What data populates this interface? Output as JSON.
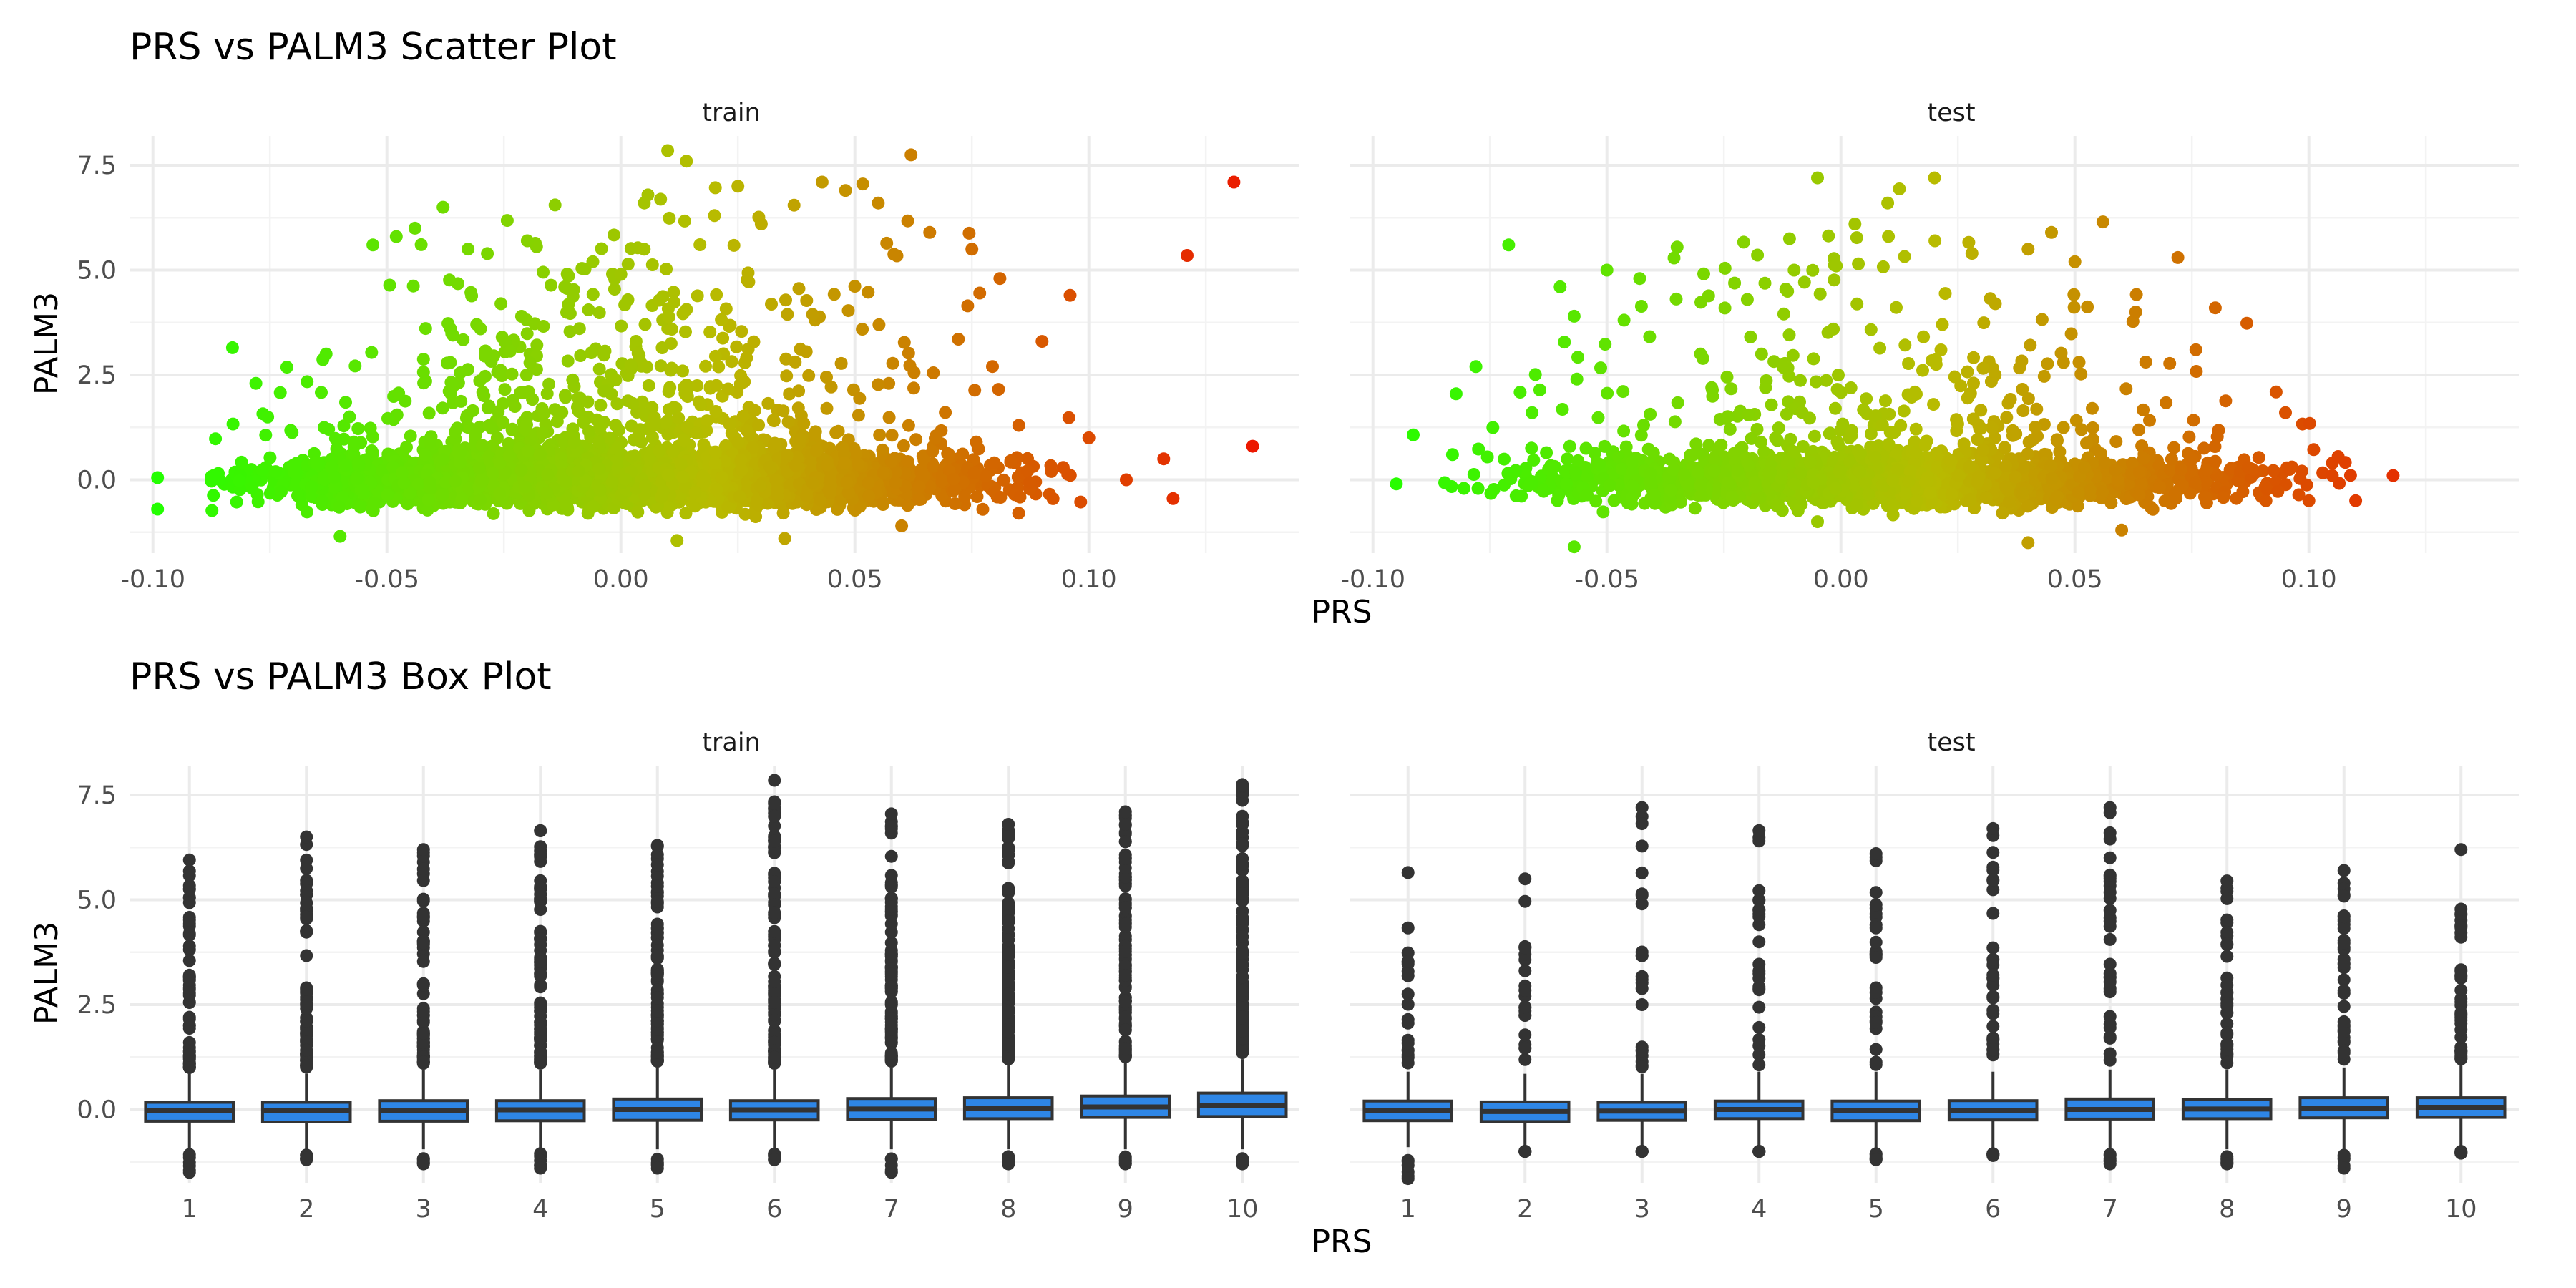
{
  "chart_data": [
    {
      "type": "scatter",
      "title": "PRS vs PALM3 Scatter Plot",
      "xlabel": "PRS",
      "ylabel": "PALM3",
      "facets": [
        "train",
        "test"
      ],
      "xlim": [
        -0.105,
        0.145
      ],
      "ylim": [
        -1.75,
        8.2
      ],
      "xticks": [
        -0.1,
        -0.05,
        0.0,
        0.05,
        0.1
      ],
      "xtick_labels": [
        "-0.10",
        "-0.05",
        "0.00",
        "0.05",
        "0.10"
      ],
      "yticks": [
        0.0,
        2.5,
        5.0,
        7.5
      ],
      "ytick_labels": [
        "0.0",
        "2.5",
        "5.0",
        "7.5"
      ],
      "grid": true,
      "legend": "none",
      "color_gradient": {
        "low": "#22ff00",
        "mid": "#b8bb00",
        "high": "#ee1100",
        "mapped_to": "PRS"
      },
      "series": [
        {
          "facet": "train",
          "description_points": [
            [
              -0.099,
              0.05
            ],
            [
              -0.099,
              -0.7
            ],
            [
              -0.083,
              3.15
            ],
            [
              -0.078,
              2.3
            ],
            [
              -0.07,
              0.35
            ],
            [
              -0.063,
              3.0
            ],
            [
              -0.058,
              1.5
            ],
            [
              -0.053,
              5.6
            ],
            [
              -0.048,
              5.8
            ],
            [
              -0.044,
              6.0
            ],
            [
              -0.038,
              6.5
            ],
            [
              -0.03,
              3.6
            ],
            [
              -0.02,
              5.7
            ],
            [
              -0.012,
              4.6
            ],
            [
              -0.006,
              5.2
            ],
            [
              0.0,
              4.9
            ],
            [
              0.005,
              6.6
            ],
            [
              0.01,
              7.85
            ],
            [
              0.014,
              7.6
            ],
            [
              0.02,
              6.3
            ],
            [
              0.025,
              7.0
            ],
            [
              0.03,
              6.1
            ],
            [
              0.037,
              6.55
            ],
            [
              0.043,
              7.1
            ],
            [
              0.048,
              6.9
            ],
            [
              0.055,
              6.6
            ],
            [
              0.062,
              7.75
            ],
            [
              0.066,
              5.9
            ],
            [
              0.075,
              5.5
            ],
            [
              0.081,
              4.8
            ],
            [
              0.09,
              3.3
            ],
            [
              0.096,
              4.4
            ],
            [
              0.1,
              1.0
            ],
            [
              0.108,
              0.0
            ],
            [
              0.116,
              0.5
            ],
            [
              0.118,
              -0.45
            ],
            [
              0.121,
              5.35
            ],
            [
              0.131,
              7.1
            ],
            [
              0.135,
              0.8
            ],
            [
              -0.06,
              -1.35
            ],
            [
              0.012,
              -1.45
            ],
            [
              0.035,
              -1.4
            ],
            [
              0.06,
              -1.1
            ],
            [
              0.085,
              -0.8
            ]
          ]
        },
        {
          "facet": "test",
          "description_points": [
            [
              -0.095,
              -0.1
            ],
            [
              -0.083,
              0.6
            ],
            [
              -0.078,
              2.7
            ],
            [
              -0.071,
              5.6
            ],
            [
              -0.066,
              1.6
            ],
            [
              -0.06,
              4.6
            ],
            [
              -0.057,
              3.9
            ],
            [
              -0.05,
              5.0
            ],
            [
              -0.043,
              4.8
            ],
            [
              -0.035,
              5.55
            ],
            [
              -0.03,
              3.0
            ],
            [
              -0.02,
              4.3
            ],
            [
              -0.01,
              5.0
            ],
            [
              -0.005,
              7.2
            ],
            [
              -0.001,
              5.1
            ],
            [
              0.003,
              6.1
            ],
            [
              0.01,
              6.6
            ],
            [
              0.02,
              7.2
            ],
            [
              0.028,
              5.4
            ],
            [
              0.033,
              4.2
            ],
            [
              0.04,
              5.5
            ],
            [
              0.045,
              5.9
            ],
            [
              0.05,
              5.2
            ],
            [
              0.056,
              6.15
            ],
            [
              0.063,
              4.0
            ],
            [
              0.072,
              5.3
            ],
            [
              0.08,
              4.1
            ],
            [
              0.087,
              0.3
            ],
            [
              0.095,
              1.6
            ],
            [
              0.1,
              -0.5
            ],
            [
              0.105,
              0.1
            ],
            [
              0.11,
              -0.5
            ],
            [
              0.118,
              0.1
            ],
            [
              -0.057,
              -1.6
            ],
            [
              -0.005,
              -1.0
            ],
            [
              0.04,
              -1.5
            ],
            [
              0.06,
              -1.2
            ]
          ]
        }
      ]
    },
    {
      "type": "box",
      "title": "PRS vs PALM3 Box Plot",
      "xlabel": "PRS",
      "ylabel": "PALM3",
      "facets": [
        "train",
        "test"
      ],
      "categories": [
        "1",
        "2",
        "3",
        "4",
        "5",
        "6",
        "7",
        "8",
        "9",
        "10"
      ],
      "ylim": [
        -1.75,
        8.2
      ],
      "yticks": [
        0.0,
        2.5,
        5.0,
        7.5
      ],
      "ytick_labels": [
        "0.0",
        "2.5",
        "5.0",
        "7.5"
      ],
      "grid": true,
      "box_fill": "#2e86e6",
      "box_outline": "#333333",
      "series": [
        {
          "facet": "train",
          "boxes": [
            {
              "q1": -0.28,
              "median": -0.03,
              "q3": 0.17,
              "whisker_low": -0.95,
              "whisker_high": 0.85,
              "outlier_max": 5.95,
              "outlier_min": -1.5
            },
            {
              "q1": -0.3,
              "median": -0.03,
              "q3": 0.17,
              "whisker_low": -0.95,
              "whisker_high": 0.85,
              "outlier_max": 6.5,
              "outlier_min": -1.2
            },
            {
              "q1": -0.28,
              "median": -0.02,
              "q3": 0.21,
              "whisker_low": -0.95,
              "whisker_high": 0.95,
              "outlier_max": 6.2,
              "outlier_min": -1.3
            },
            {
              "q1": -0.27,
              "median": -0.01,
              "q3": 0.21,
              "whisker_low": -0.95,
              "whisker_high": 0.95,
              "outlier_max": 6.65,
              "outlier_min": -1.4
            },
            {
              "q1": -0.26,
              "median": 0.0,
              "q3": 0.25,
              "whisker_low": -0.95,
              "whisker_high": 1.0,
              "outlier_max": 6.3,
              "outlier_min": -1.4
            },
            {
              "q1": -0.25,
              "median": -0.01,
              "q3": 0.21,
              "whisker_low": -0.95,
              "whisker_high": 0.95,
              "outlier_max": 7.85,
              "outlier_min": -1.2
            },
            {
              "q1": -0.24,
              "median": 0.01,
              "q3": 0.26,
              "whisker_low": -0.95,
              "whisker_high": 1.0,
              "outlier_max": 7.05,
              "outlier_min": -1.5
            },
            {
              "q1": -0.22,
              "median": 0.03,
              "q3": 0.28,
              "whisker_low": -0.95,
              "whisker_high": 1.05,
              "outlier_max": 6.8,
              "outlier_min": -1.3
            },
            {
              "q1": -0.19,
              "median": 0.06,
              "q3": 0.32,
              "whisker_low": -0.95,
              "whisker_high": 1.1,
              "outlier_max": 7.1,
              "outlier_min": -1.3
            },
            {
              "q1": -0.17,
              "median": 0.1,
              "q3": 0.39,
              "whisker_low": -0.95,
              "whisker_high": 1.2,
              "outlier_max": 7.75,
              "outlier_min": -1.3
            }
          ]
        },
        {
          "facet": "test",
          "boxes": [
            {
              "q1": -0.27,
              "median": -0.02,
              "q3": 0.2,
              "whisker_low": -0.9,
              "whisker_high": 0.9,
              "outlier_max": 5.65,
              "outlier_min": -1.65
            },
            {
              "q1": -0.29,
              "median": -0.05,
              "q3": 0.18,
              "whisker_low": -0.9,
              "whisker_high": 0.85,
              "outlier_max": 5.5,
              "outlier_min": -1.0
            },
            {
              "q1": -0.26,
              "median": -0.04,
              "q3": 0.17,
              "whisker_low": -0.9,
              "whisker_high": 0.85,
              "outlier_max": 7.2,
              "outlier_min": -1.0
            },
            {
              "q1": -0.22,
              "median": 0.0,
              "q3": 0.2,
              "whisker_low": -0.9,
              "whisker_high": 0.9,
              "outlier_max": 6.65,
              "outlier_min": -1.0
            },
            {
              "q1": -0.27,
              "median": -0.03,
              "q3": 0.2,
              "whisker_low": -0.95,
              "whisker_high": 0.9,
              "outlier_max": 6.1,
              "outlier_min": -1.2
            },
            {
              "q1": -0.25,
              "median": -0.03,
              "q3": 0.21,
              "whisker_low": -0.95,
              "whisker_high": 0.9,
              "outlier_max": 6.7,
              "outlier_min": -1.1
            },
            {
              "q1": -0.23,
              "median": 0.0,
              "q3": 0.25,
              "whisker_low": -0.95,
              "whisker_high": 0.95,
              "outlier_max": 7.2,
              "outlier_min": -1.3
            },
            {
              "q1": -0.22,
              "median": 0.01,
              "q3": 0.23,
              "whisker_low": -0.95,
              "whisker_high": 0.95,
              "outlier_max": 5.45,
              "outlier_min": -1.3
            },
            {
              "q1": -0.2,
              "median": 0.03,
              "q3": 0.28,
              "whisker_low": -0.95,
              "whisker_high": 1.0,
              "outlier_max": 5.7,
              "outlier_min": -1.4
            },
            {
              "q1": -0.19,
              "median": 0.05,
              "q3": 0.28,
              "whisker_low": -0.95,
              "whisker_high": 1.05,
              "outlier_max": 6.2,
              "outlier_min": -1.0
            }
          ]
        }
      ]
    }
  ]
}
